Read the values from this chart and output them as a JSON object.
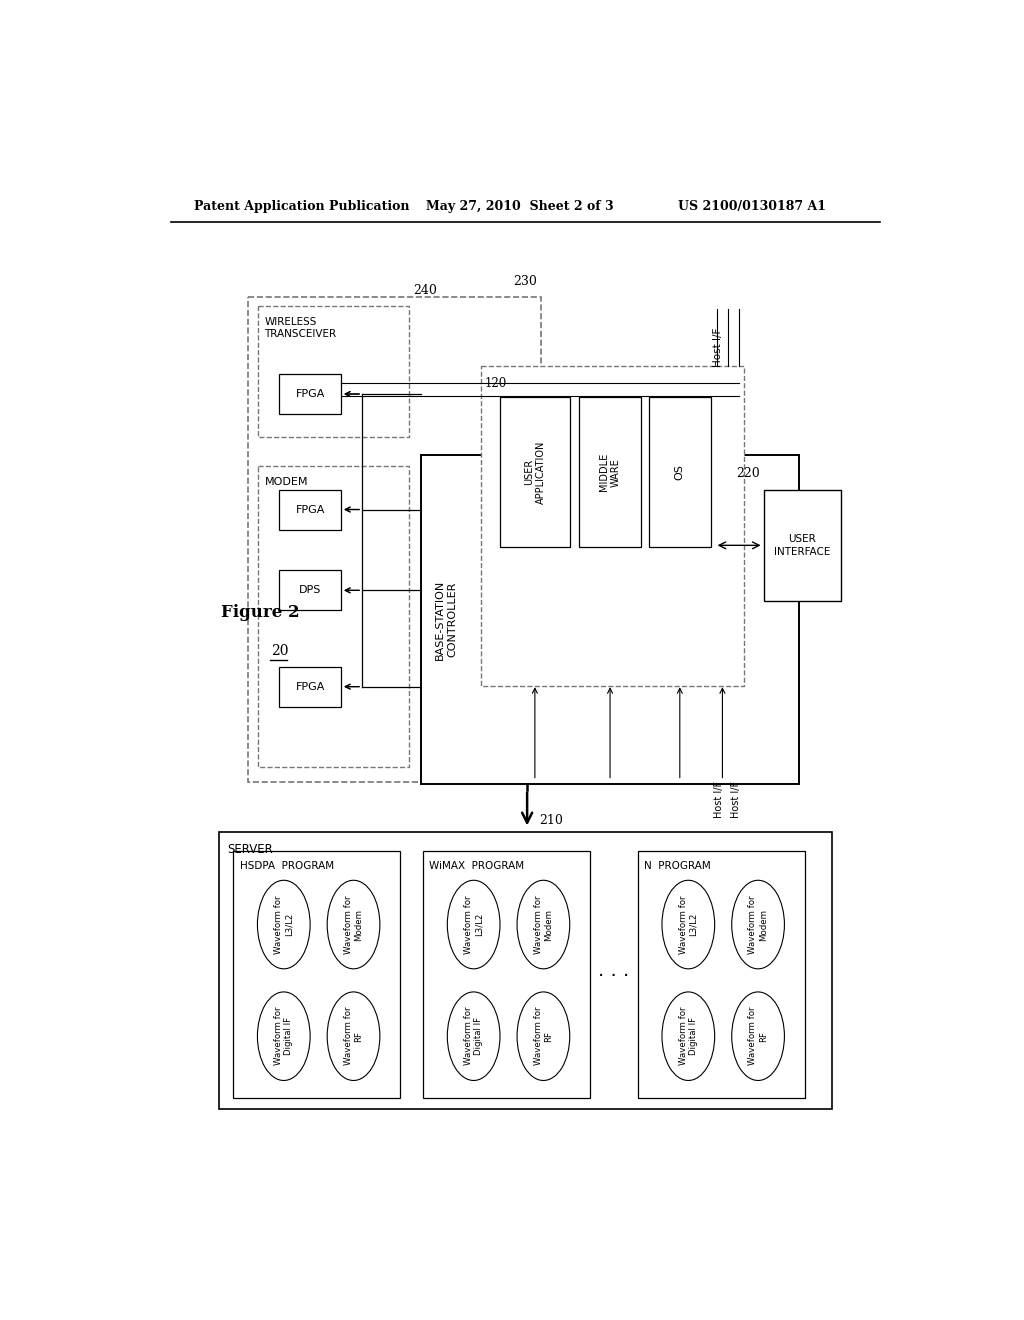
{
  "bg_color": "#ffffff",
  "header_left": "Patent Application Publication",
  "header_mid": "May 27, 2010  Sheet 2 of 3",
  "header_right": "US 2100/0130187 A1",
  "figure_label": "Figure 2",
  "system_label": "20"
}
